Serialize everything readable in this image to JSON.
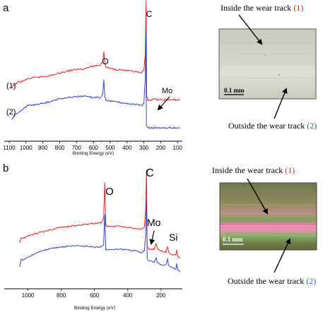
{
  "chart_data": [
    {
      "panel": "a",
      "type": "line",
      "xlabel": "Binding Energy (eV)",
      "ylabel": "",
      "xlim": [
        1100,
        80
      ],
      "x_reversed": true,
      "xticks": [
        "1100",
        "1000",
        "900",
        "800",
        "700",
        "600",
        "500",
        "400",
        "300",
        "200",
        "100"
      ],
      "tick_values": [
        1100,
        1000,
        900,
        800,
        700,
        600,
        500,
        400,
        300,
        200,
        100
      ],
      "series": [
        {
          "name": "(1)",
          "color": "#e32222",
          "x": [
            1085,
            1070,
            1050,
            1020,
            990,
            950,
            900,
            850,
            800,
            750,
            700,
            650,
            600,
            560,
            545,
            538,
            532,
            525,
            500,
            450,
            400,
            350,
            315,
            300,
            292,
            287,
            283,
            275,
            250,
            230,
            220,
            200,
            150,
            100,
            85
          ],
          "y": [
            0.38,
            0.4,
            0.42,
            0.43,
            0.45,
            0.46,
            0.47,
            0.48,
            0.5,
            0.52,
            0.53,
            0.54,
            0.56,
            0.57,
            0.6,
            0.68,
            0.58,
            0.55,
            0.54,
            0.53,
            0.52,
            0.51,
            0.5,
            0.52,
            0.65,
            1.12,
            0.3,
            0.27,
            0.27,
            0.28,
            0.27,
            0.27,
            0.27,
            0.27,
            0.27
          ]
        },
        {
          "name": "(2)",
          "color": "#3345c8",
          "x": [
            1085,
            1070,
            1050,
            1020,
            990,
            950,
            900,
            850,
            800,
            750,
            700,
            650,
            600,
            560,
            545,
            538,
            532,
            525,
            500,
            450,
            400,
            350,
            315,
            300,
            292,
            288,
            285,
            275,
            250,
            200,
            150,
            100,
            85
          ],
          "y": [
            0.1,
            0.13,
            0.16,
            0.19,
            0.22,
            0.23,
            0.24,
            0.26,
            0.28,
            0.29,
            0.3,
            0.3,
            0.29,
            0.29,
            0.32,
            0.44,
            0.3,
            0.27,
            0.26,
            0.25,
            0.24,
            0.23,
            0.22,
            0.24,
            0.45,
            0.85,
            0.04,
            0.03,
            0.03,
            0.03,
            0.03,
            0.03,
            0.03
          ]
        }
      ],
      "annotations": [
        "C",
        "O",
        "Mo"
      ]
    },
    {
      "panel": "b",
      "type": "line",
      "xlabel": "Binding Energy (eV)",
      "ylabel": "",
      "xlim": [
        1130,
        80
      ],
      "x_reversed": true,
      "xticks": [
        "1000",
        "800",
        "600",
        "400",
        "200"
      ],
      "tick_values": [
        1000,
        800,
        600,
        400,
        200
      ],
      "series": [
        {
          "name": "(1)",
          "color": "#e32222",
          "x": [
            1050,
            1040,
            1030,
            1000,
            950,
            900,
            850,
            800,
            750,
            700,
            650,
            600,
            560,
            545,
            538,
            532,
            526,
            500,
            450,
            400,
            350,
            320,
            300,
            292,
            287,
            283,
            270,
            240,
            228,
            222,
            210,
            190,
            170,
            160,
            155,
            150,
            135,
            110,
            105,
            100,
            95,
            85
          ],
          "y": [
            0.34,
            0.4,
            0.39,
            0.41,
            0.44,
            0.46,
            0.48,
            0.5,
            0.51,
            0.52,
            0.53,
            0.54,
            0.55,
            0.58,
            0.95,
            0.52,
            0.51,
            0.51,
            0.51,
            0.5,
            0.49,
            0.48,
            0.5,
            0.68,
            1.08,
            0.3,
            0.28,
            0.28,
            0.34,
            0.28,
            0.27,
            0.26,
            0.25,
            0.31,
            0.25,
            0.24,
            0.22,
            0.22,
            0.27,
            0.21,
            0.2,
            0.19
          ]
        },
        {
          "name": "(2)",
          "color": "#3345c8",
          "x": [
            1050,
            1040,
            1030,
            1000,
            950,
            900,
            850,
            800,
            750,
            700,
            650,
            600,
            560,
            545,
            538,
            532,
            526,
            500,
            450,
            400,
            350,
            320,
            300,
            292,
            287,
            283,
            270,
            240,
            228,
            222,
            210,
            190,
            170,
            160,
            155,
            150,
            135,
            110,
            105,
            100,
            95,
            85
          ],
          "y": [
            0.1,
            0.18,
            0.17,
            0.2,
            0.24,
            0.27,
            0.29,
            0.3,
            0.31,
            0.31,
            0.31,
            0.3,
            0.3,
            0.32,
            0.63,
            0.28,
            0.27,
            0.28,
            0.28,
            0.27,
            0.26,
            0.24,
            0.26,
            0.42,
            0.78,
            0.18,
            0.16,
            0.15,
            0.2,
            0.14,
            0.13,
            0.12,
            0.12,
            0.18,
            0.12,
            0.11,
            0.09,
            0.08,
            0.14,
            0.07,
            0.06,
            0.05
          ]
        }
      ],
      "annotations": [
        "C",
        "O",
        "Mo",
        "Si"
      ]
    }
  ],
  "panel_a": {
    "letter": "a",
    "peak_c": "C",
    "peak_o": "O",
    "peak_mo": "Mo",
    "label_1": "(1)",
    "label_2": "(2)",
    "photo": {
      "inside_prefix": "Inside the wear track ",
      "inside_num": "(1)",
      "outside_prefix": "Outside the wear track ",
      "outside_num": "(2)",
      "scale": "0.1 mm"
    }
  },
  "panel_b": {
    "letter": "b",
    "peak_c": "C",
    "peak_o": "O",
    "peak_mo": "Mo",
    "peak_si": "Si",
    "photo": {
      "inside_prefix": "Inside the wear track ",
      "inside_num": "(1)",
      "outside_prefix": "Outside the wear track ",
      "outside_num": "(2)",
      "scale": "0.1 mm"
    }
  },
  "colors": {
    "series_1": "#e32222",
    "series_2": "#3345c8",
    "label_1": "#c0392b",
    "label_2": "#2f58b5"
  }
}
